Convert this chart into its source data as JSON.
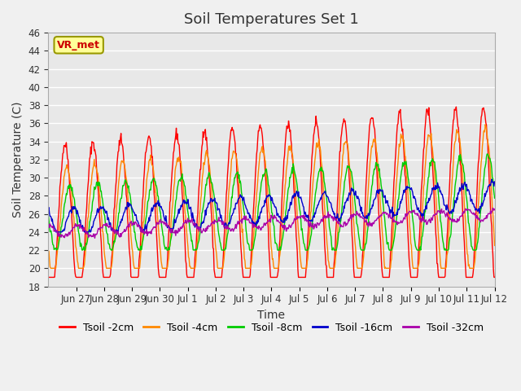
{
  "title": "Soil Temperatures Set 1",
  "xlabel": "Time",
  "ylabel": "Soil Temperature (C)",
  "ylim": [
    18,
    46
  ],
  "yticks": [
    18,
    20,
    22,
    24,
    26,
    28,
    30,
    32,
    34,
    36,
    38,
    40,
    42,
    44,
    46
  ],
  "xtick_labels": [
    "Jun 27",
    "Jun 28",
    "Jun 29",
    "Jun 30",
    "Jul 1",
    "Jul 2",
    "Jul 3",
    "Jul 4",
    "Jul 5",
    "Jul 6",
    "Jul 7",
    "Jul 8",
    "Jul 9",
    "Jul 10",
    "Jul 11",
    "Jul 12"
  ],
  "annotation_text": "VR_met",
  "annotation_color": "#cc0000",
  "annotation_bg": "#ffff99",
  "annotation_border": "#999900",
  "lines": [
    {
      "label": "Tsoil -2cm",
      "color": "#ff0000"
    },
    {
      "label": "Tsoil -4cm",
      "color": "#ff8800"
    },
    {
      "label": "Tsoil -8cm",
      "color": "#00cc00"
    },
    {
      "label": "Tsoil -16cm",
      "color": "#0000cc"
    },
    {
      "label": "Tsoil -32cm",
      "color": "#aa00aa"
    }
  ],
  "bg_color": "#e8e8e8",
  "plot_bg": "#e8e8e8",
  "grid_color": "#ffffff",
  "title_fontsize": 13,
  "label_fontsize": 10,
  "tick_fontsize": 8.5,
  "legend_fontsize": 9
}
